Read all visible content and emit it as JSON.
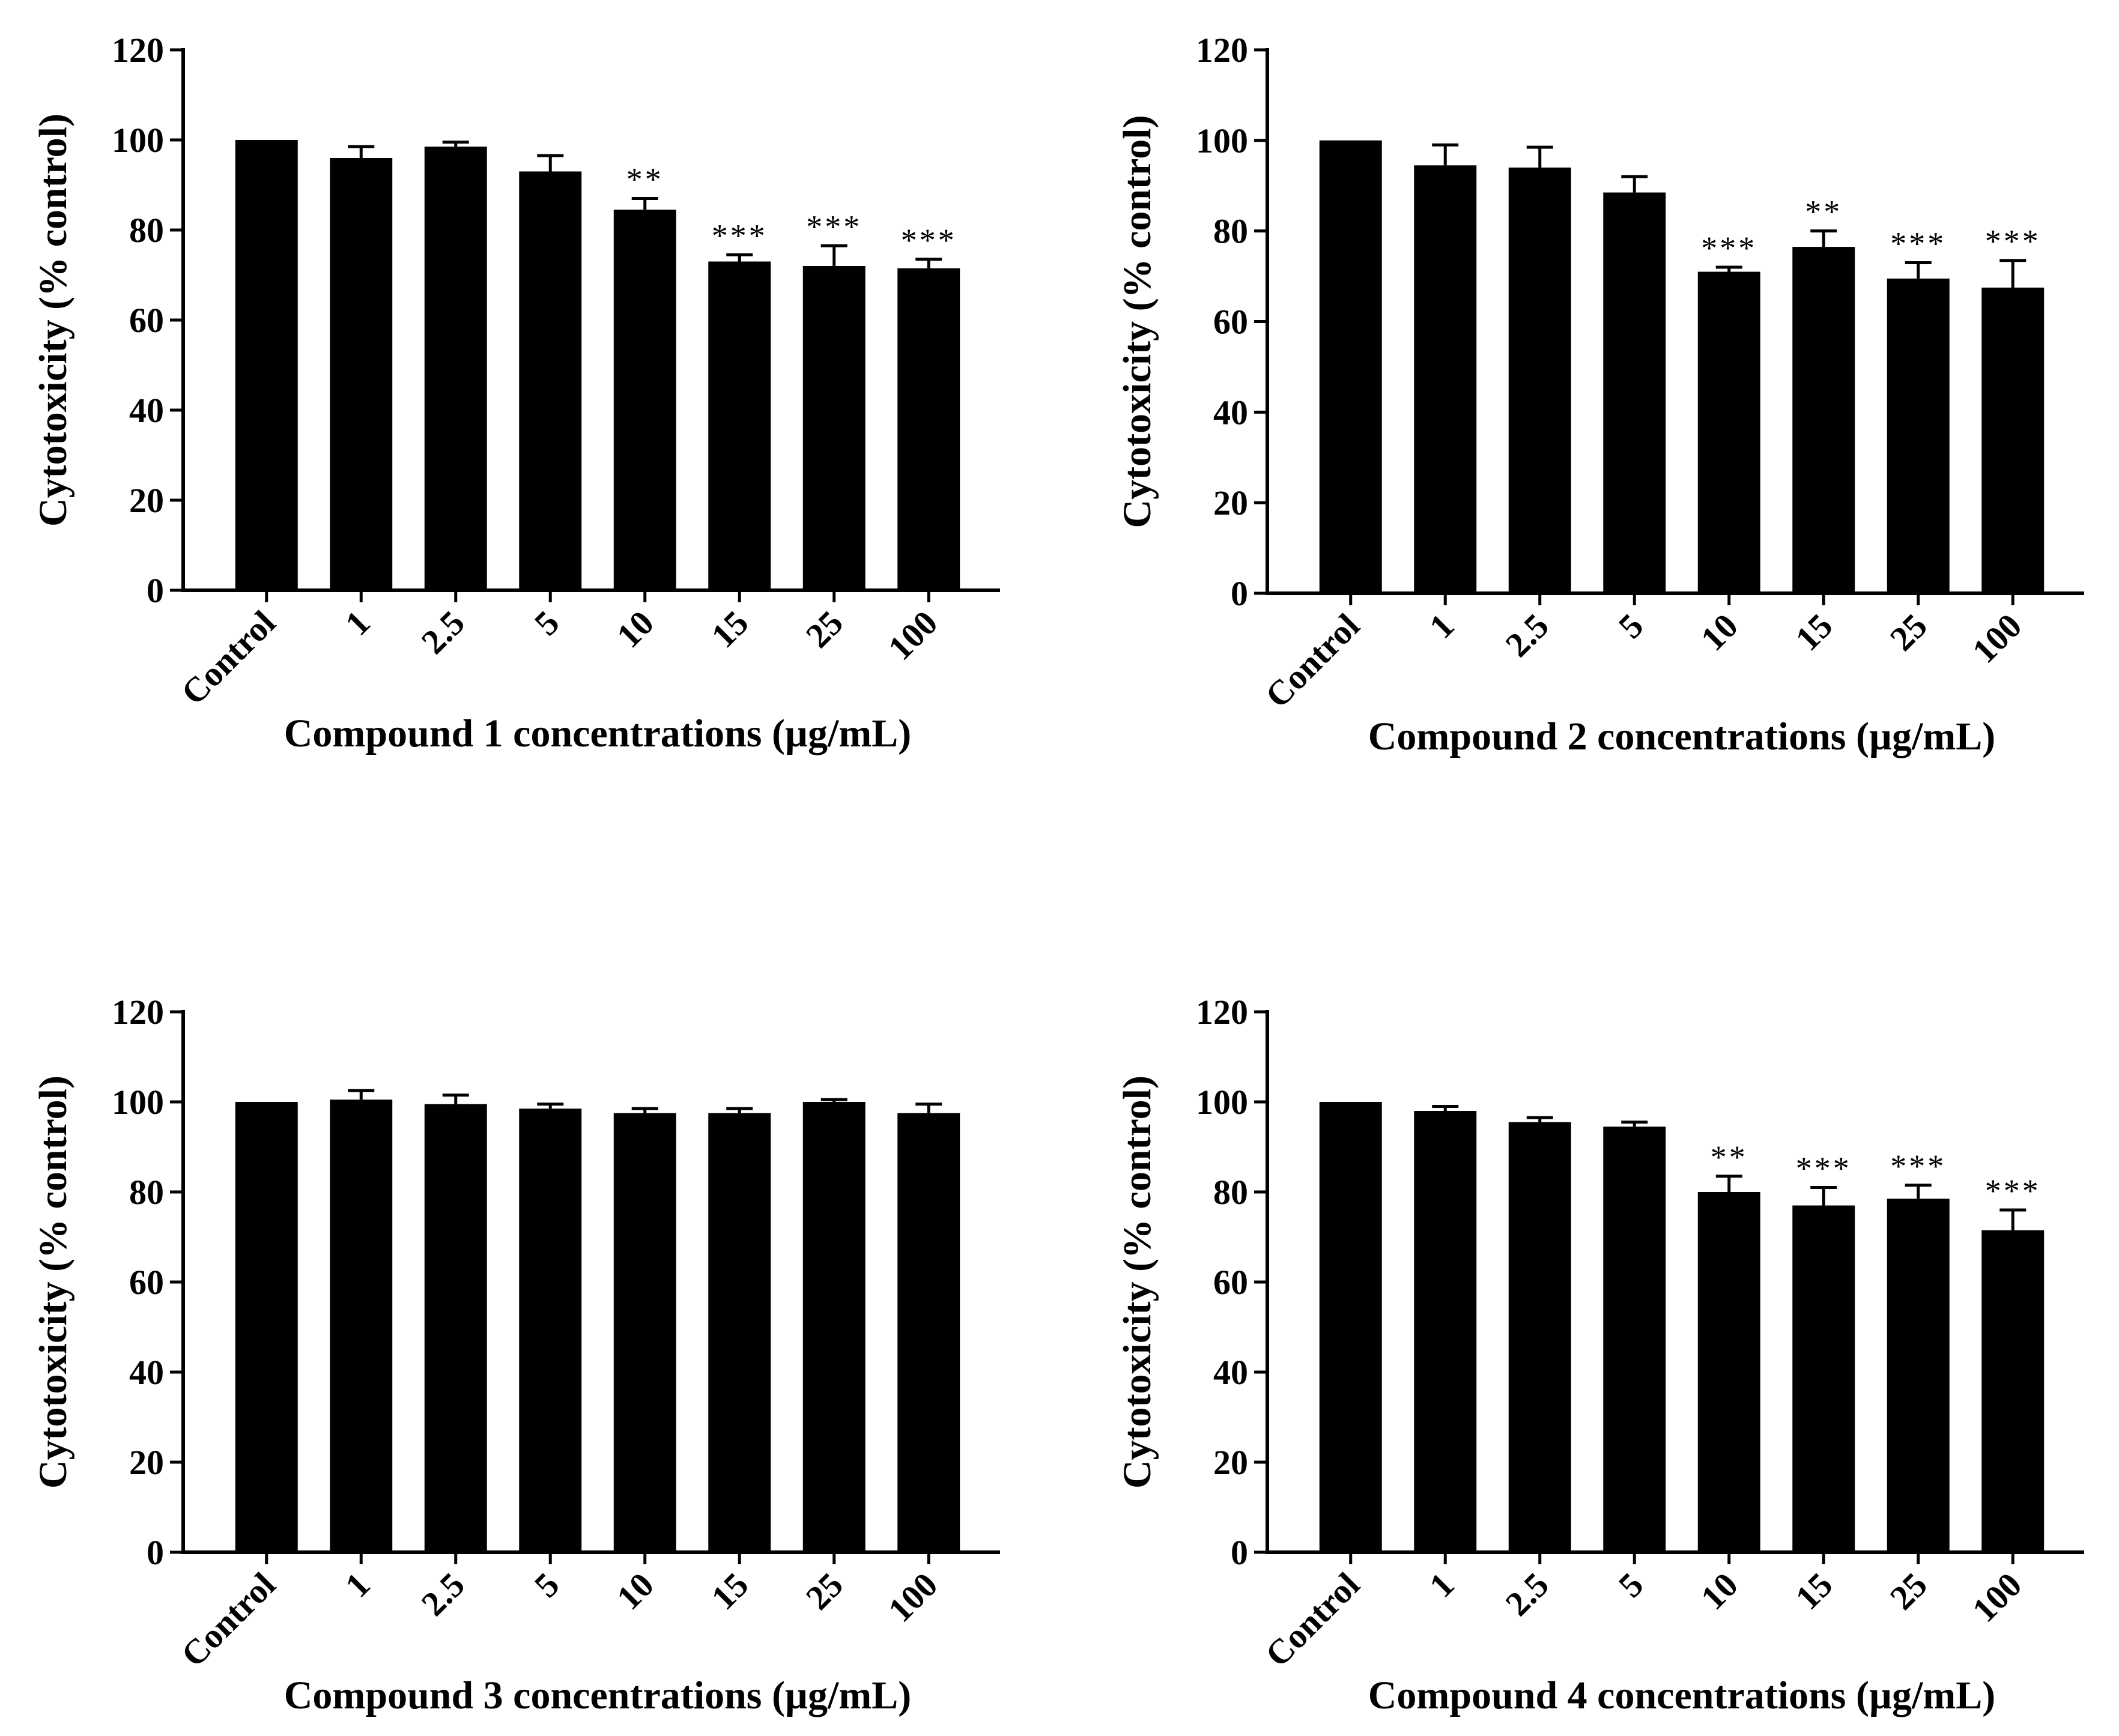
{
  "chart_data": [
    {
      "type": "bar",
      "panel": "top-left",
      "categories": [
        "Control",
        "1",
        "2.5",
        "5",
        "10",
        "15",
        "25",
        "100"
      ],
      "values": [
        100,
        96,
        98.5,
        93,
        84.5,
        73,
        72,
        71.5
      ],
      "errors": [
        0,
        2.5,
        1,
        3.5,
        2.5,
        1.5,
        4.5,
        2
      ],
      "significance": [
        "",
        "",
        "",
        "",
        "**",
        "***",
        "***",
        "***"
      ],
      "ylabel": "Cytotoxicity (% control)",
      "xlabel": "Compound 1 concentrations (µg/mL)",
      "ylim": [
        0,
        120
      ],
      "yticks": [
        "0",
        "20",
        "40",
        "60",
        "80",
        "100",
        "120"
      ],
      "bar_color": "#000000"
    },
    {
      "type": "bar",
      "panel": "top-right",
      "categories": [
        "Control",
        "1",
        "2.5",
        "5",
        "10",
        "15",
        "25",
        "100"
      ],
      "values": [
        100,
        94.5,
        94,
        88.5,
        71,
        76.5,
        69.5,
        67.5
      ],
      "errors": [
        0,
        4.5,
        4.5,
        3.5,
        1,
        3.5,
        3.5,
        6
      ],
      "significance": [
        "",
        "",
        "",
        "",
        "***",
        "**",
        "***",
        "***"
      ],
      "ylabel": "Cytotoxicity (% control)",
      "xlabel": "Compound 2 concentrations (µg/mL)",
      "ylim": [
        0,
        120
      ],
      "yticks": [
        "0",
        "20",
        "40",
        "60",
        "80",
        "100",
        "120"
      ],
      "bar_color": "#000000"
    },
    {
      "type": "bar",
      "panel": "bottom-left",
      "categories": [
        "Control",
        "1",
        "2.5",
        "5",
        "10",
        "15",
        "25",
        "100"
      ],
      "values": [
        100,
        100.5,
        99.5,
        98.5,
        97.5,
        97.5,
        100,
        97.5
      ],
      "errors": [
        0,
        2,
        2,
        1,
        1,
        1,
        0.5,
        2
      ],
      "significance": [
        "",
        "",
        "",
        "",
        "",
        "",
        "",
        ""
      ],
      "ylabel": "Cytotoxicity (% control)",
      "xlabel": "Compound 3 concentrations (µg/mL)",
      "ylim": [
        0,
        120
      ],
      "yticks": [
        "0",
        "20",
        "40",
        "60",
        "80",
        "100",
        "120"
      ],
      "bar_color": "#000000"
    },
    {
      "type": "bar",
      "panel": "bottom-right",
      "categories": [
        "Control",
        "1",
        "2.5",
        "5",
        "10",
        "15",
        "25",
        "100"
      ],
      "values": [
        100,
        98,
        95.5,
        94.5,
        80,
        77,
        78.5,
        71.5
      ],
      "errors": [
        0,
        1,
        1,
        1,
        3.5,
        4,
        3,
        4.5
      ],
      "significance": [
        "",
        "",
        "",
        "",
        "**",
        "***",
        "***",
        "***"
      ],
      "ylabel": "Cytotoxicity (% control)",
      "xlabel": "Compound 4 concentrations (µg/mL)",
      "ylim": [
        0,
        120
      ],
      "yticks": [
        "0",
        "20",
        "40",
        "60",
        "80",
        "100",
        "120"
      ],
      "bar_color": "#000000"
    }
  ]
}
